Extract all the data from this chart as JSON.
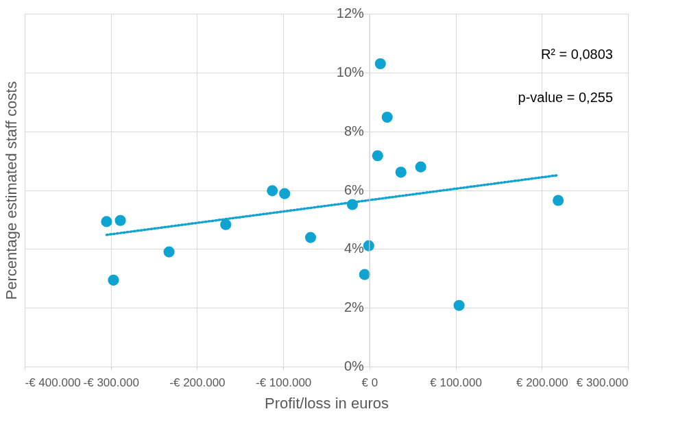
{
  "chart_data": {
    "type": "scatter",
    "xlabel": "Profit/loss in euros",
    "ylabel": "Percentage estimated staff costs",
    "xlim": [
      -400000,
      300000
    ],
    "xticks": [
      {
        "value": -400000,
        "label": "-€ 400.000"
      },
      {
        "value": -300000,
        "label": "-€ 300.000"
      },
      {
        "value": -200000,
        "label": "-€ 200.000"
      },
      {
        "value": -100000,
        "label": "-€ 100.000"
      },
      {
        "value": 0,
        "label": "€ 0"
      },
      {
        "value": 100000,
        "label": "€ 100.000"
      },
      {
        "value": 200000,
        "label": "€ 200.000"
      },
      {
        "value": 300000,
        "label": "€ 300.000"
      }
    ],
    "ylim": [
      0,
      12
    ],
    "yticks": [
      {
        "value": 0,
        "label": "0%"
      },
      {
        "value": 2,
        "label": "2%"
      },
      {
        "value": 4,
        "label": "4%"
      },
      {
        "value": 6,
        "label": "6%"
      },
      {
        "value": 8,
        "label": "8%"
      },
      {
        "value": 10,
        "label": "10%"
      },
      {
        "value": 12,
        "label": "12%"
      }
    ],
    "grid": true,
    "annotations": [
      "R² = 0,0803",
      "p-value = 0,255"
    ],
    "series": [
      {
        "type": "scatter",
        "marker": "circle",
        "color": "#0fa3d1",
        "x": [
          -305000,
          -289000,
          -297000,
          -232500,
          -166700,
          -112700,
          -98400,
          -68300,
          -19800,
          -5600,
          -800,
          9500,
          12700,
          20600,
          36500,
          59500,
          104000,
          219000
        ],
        "values": [
          4.93,
          4.97,
          2.94,
          3.9,
          4.83,
          5.98,
          5.88,
          4.39,
          5.51,
          3.13,
          4.11,
          7.17,
          10.3,
          8.48,
          6.61,
          6.79,
          2.08,
          5.65
        ]
      },
      {
        "type": "line",
        "marker": "none",
        "line_style": "dotted",
        "color": "#0fa3d1",
        "x": [
          -305000,
          219000
        ],
        "values": [
          4.48,
          6.51
        ]
      }
    ]
  }
}
